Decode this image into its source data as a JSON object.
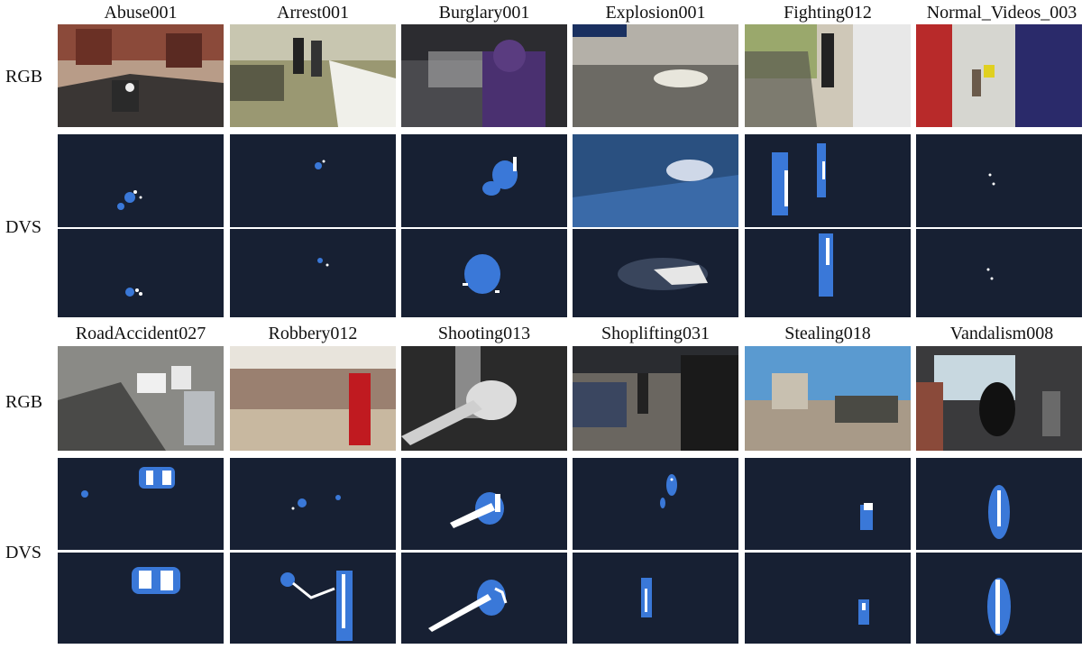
{
  "row_labels": {
    "rgb_top": "RGB",
    "dvs_top": "DVS",
    "rgb_bottom": "RGB",
    "dvs_bottom": "DVS"
  },
  "top_titles": [
    "Abuse001",
    "Arrest001",
    "Burglary001",
    "Explosion001",
    "Fighting012",
    "Normal_Videos_003"
  ],
  "bottom_titles": [
    "RoadAccident027",
    "Robbery012",
    "Shooting013",
    "Shoplifting031",
    "Stealing018",
    "Vandalism008"
  ],
  "colors": {
    "dvs_background": "#172033",
    "dvs_event_blue": "#3a78d8",
    "dvs_event_white": "#ffffff"
  }
}
